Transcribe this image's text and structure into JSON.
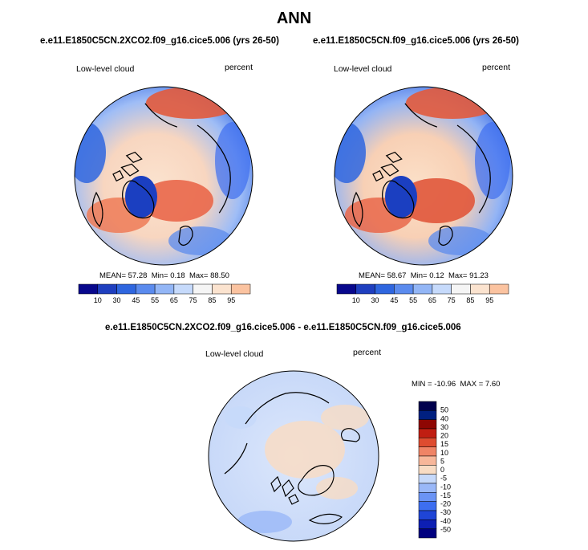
{
  "figure": {
    "title": "ANN"
  },
  "colors": {
    "scale_mean": [
      "#08088c",
      "#1f3fbf",
      "#2f66df",
      "#5b8bee",
      "#93b6f6",
      "#c6dafb",
      "#f5f5f5",
      "#fbe3cf",
      "#fbc3a0",
      "#f59a72",
      "#e9674a",
      "#cc2f1d",
      "#960a06",
      "#5a0000"
    ],
    "scale_diff": [
      "#00007f",
      "#0d1fb3",
      "#1f45d6",
      "#3d6ef0",
      "#6b94f5",
      "#9ab8f8",
      "#c6d9fa",
      "#f8dcc4",
      "#f7b79a",
      "#ef8466",
      "#de4c30",
      "#c01e12",
      "#8e0603"
    ],
    "coast": "#000000"
  },
  "chart_data": [
    {
      "type": "heatmap",
      "panel": "top-left",
      "case": "e.e11.E1850C5CN.2XCO2.f09_g16.cice5.006 (yrs 26-50)",
      "variable": "Low-level cloud",
      "units": "percent",
      "stats": {
        "mean_label": "MEAN=",
        "mean": "57.28",
        "min_label": "Min=",
        "min": "0.18",
        "max_label": "Max=",
        "max": "88.50"
      },
      "colorbar_ticks": [
        "10",
        "30",
        "45",
        "55",
        "65",
        "75",
        "85",
        "95"
      ],
      "colorbar_orientation": "horizontal"
    },
    {
      "type": "heatmap",
      "panel": "top-right",
      "case": "e.e11.E1850C5CN.f09_g16.cice5.006 (yrs 26-50)",
      "variable": "Low-level cloud",
      "units": "percent",
      "stats": {
        "mean_label": "MEAN=",
        "mean": "58.67",
        "min_label": "Min=",
        "min": "0.12",
        "max_label": "Max=",
        "max": "91.23"
      },
      "colorbar_ticks": [
        "10",
        "30",
        "45",
        "55",
        "65",
        "75",
        "85",
        "95"
      ],
      "colorbar_orientation": "horizontal"
    },
    {
      "type": "heatmap",
      "panel": "bottom",
      "case": "e.e11.E1850C5CN.2XCO2.f09_g16.cice5.006 - e.e11.E1850C5CN.f09_g16.cice5.006",
      "variable": "Low-level cloud",
      "units": "percent",
      "stats": {
        "min_label": "MIN =",
        "min": "-10.96",
        "max_label": "MAX =",
        "max": "7.60"
      },
      "colorbar_ticks": [
        "50",
        "40",
        "30",
        "20",
        "15",
        "10",
        "5",
        "0",
        "-5",
        "-10",
        "-15",
        "-20",
        "-30",
        "-40",
        "-50"
      ],
      "colorbar_orientation": "vertical"
    }
  ]
}
